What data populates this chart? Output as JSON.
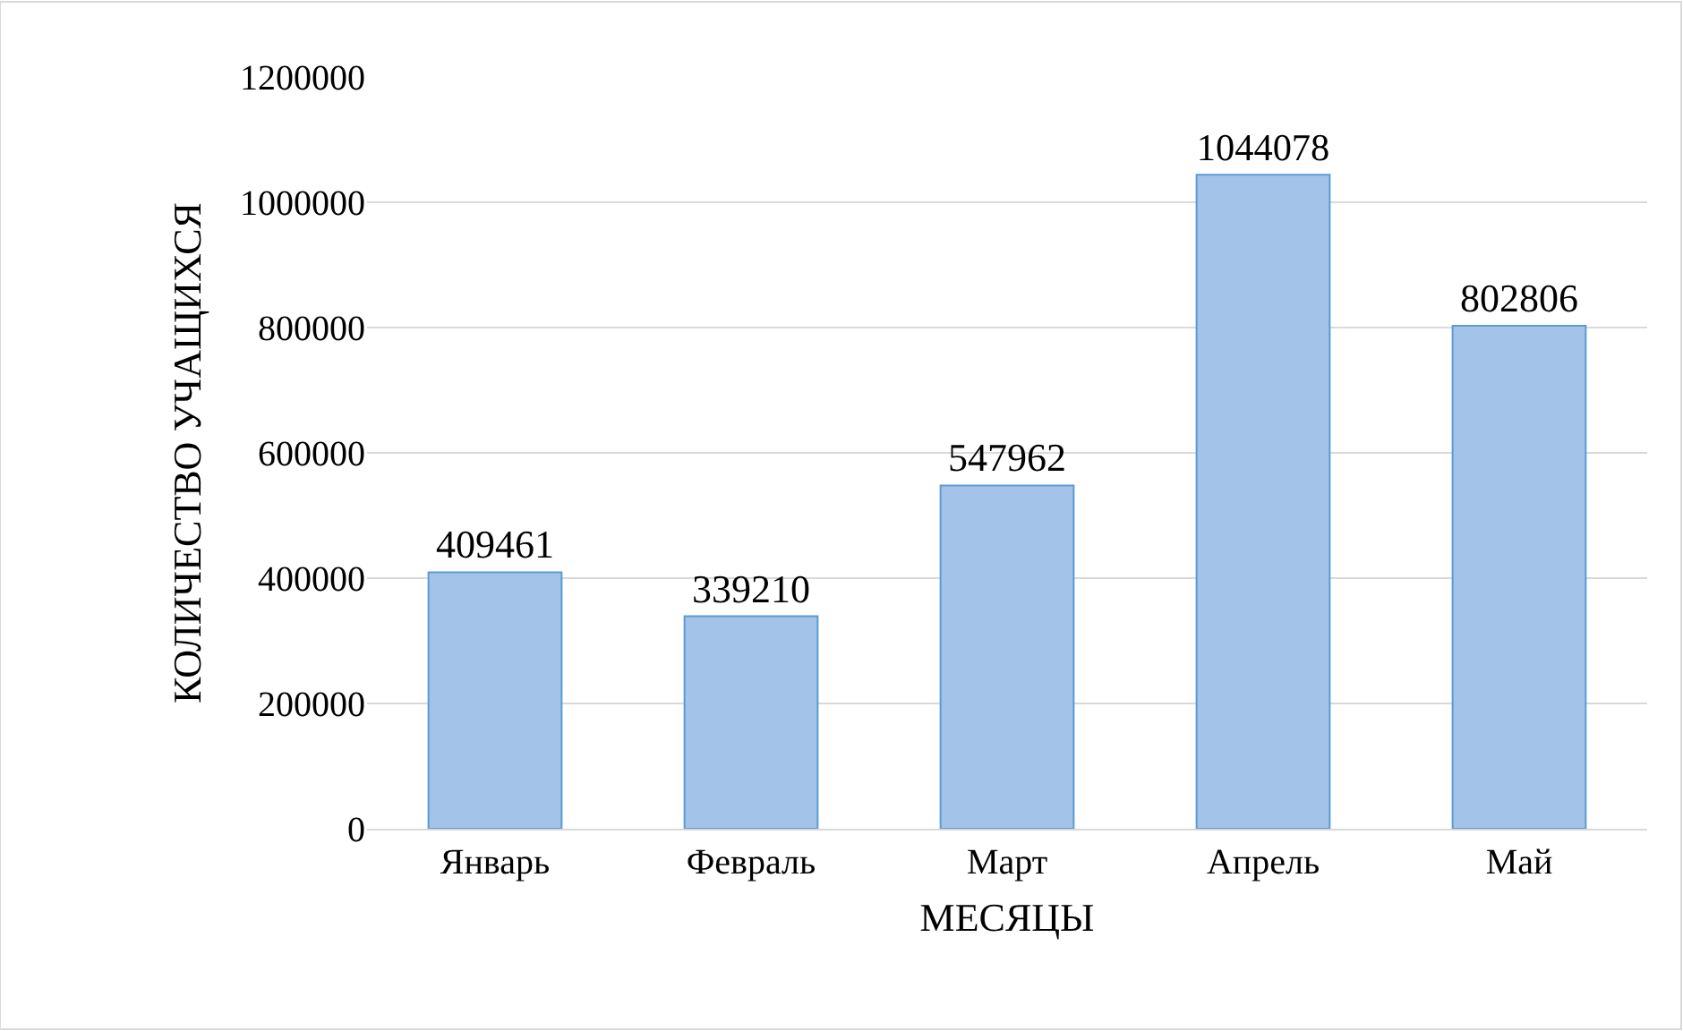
{
  "chart_data": {
    "type": "bar",
    "xlabel": "МЕСЯЦЫ",
    "ylabel": "КОЛИЧЕСТВО УЧАЩИХСЯ",
    "categories": [
      "Январь",
      "Февраль",
      "Март",
      "Апрель",
      "Май"
    ],
    "values": [
      409461,
      339210,
      547962,
      1044078,
      802806
    ],
    "color": "#a4c3e8",
    "ylim": [
      0,
      1200000
    ],
    "yticks": [
      0,
      200000,
      400000,
      600000,
      800000,
      1000000,
      1200000
    ],
    "grid": "y",
    "legend": false,
    "data_labels": true
  }
}
